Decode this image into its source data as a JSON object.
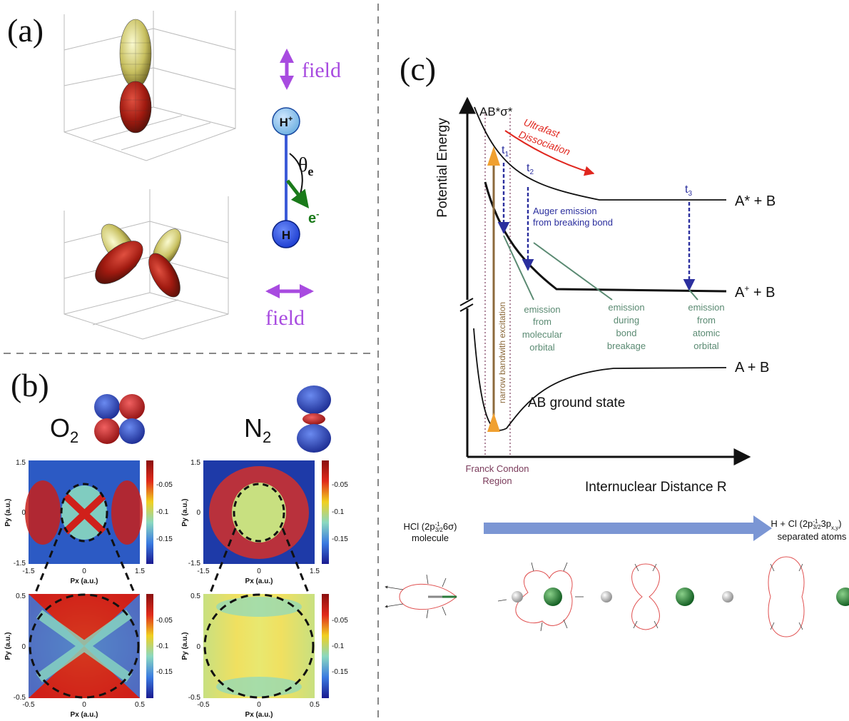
{
  "panels": {
    "a": {
      "label": "(a)",
      "field_top": "field",
      "field_bottom": "field",
      "h_plus": "H",
      "h_plus_sup": "+",
      "h_atom": "H",
      "theta": "θ",
      "theta_sub": "e",
      "electron": "e",
      "electron_sup": "-",
      "colors": {
        "field": "#a84be0",
        "electron": "#1a7a1a",
        "bond": "#3c5bd8"
      }
    },
    "b": {
      "label": "(b)",
      "o2_label": "O",
      "o2_sub": "2",
      "n2_label": "N",
      "n2_sub": "2",
      "top_maps": {
        "y_ticks": [
          "1.5",
          "0",
          "-1.5"
        ],
        "x_ticks": [
          "-1.5",
          "0",
          "1.5"
        ],
        "colorbar_ticks": [
          "-0.05",
          "-0.1",
          "-0.15"
        ]
      },
      "bottom_maps": {
        "y_ticks": [
          "0.5",
          "0",
          "-0.5"
        ],
        "x_ticks": [
          "-0.5",
          "0",
          "0.5"
        ],
        "colorbar_ticks": [
          "-0.05",
          "-0.1",
          "-0.15"
        ]
      },
      "xlabel": "Px (a.u.)",
      "ylabel": "Py (a.u.)"
    },
    "c": {
      "label": "(c)",
      "ylabel": "Potential Energy",
      "xlabel": "Internuclear Distance R",
      "ab_excited": "AB*σ*",
      "ultrafast": "Ultrafast",
      "dissociation": "Dissociation",
      "t1": "t",
      "t1_sub": "1",
      "t2": "t",
      "t2_sub": "2",
      "t3": "t",
      "t3_sub": "3",
      "a_star_b": "A* + B",
      "a_plus": "A",
      "a_plus_sup": "+",
      "a_plus_rest": " + B",
      "a_b": "A + B",
      "auger_line1": "Auger emission",
      "auger_line2": "from breaking bond",
      "narrow_bw": "narrow bandwith excitation",
      "emission_mol": [
        "emission",
        "from",
        "molecular",
        "orbital"
      ],
      "emission_bond": [
        "emission",
        "during",
        "bond",
        "breakage"
      ],
      "emission_atom": [
        "emission",
        "from",
        "atomic",
        "orbital"
      ],
      "ground_state": "AB ground state",
      "franck_condon_1": "Franck Condon",
      "franck_condon_2": "Region",
      "hcl_a": "HCl (2p",
      "hcl_sup": "-1",
      "hcl_sub": "3/2",
      "hcl_b": "6σ)",
      "hcl_line2": "molecule",
      "hcl_right_a": "H + Cl (2p",
      "hcl_right_sup": "-1",
      "hcl_right_sub": "3/2",
      "hcl_right_b": "3p",
      "hcl_right_sub2": "x,y",
      "hcl_right_c": ")",
      "hcl_right_line2": "separated atoms",
      "colors": {
        "red": "#e0261e",
        "blue": "#2b2f9e",
        "green": "#5a8a72",
        "brown": "#8c6a3c",
        "orange": "#f0a030",
        "arrow": "#7b96d4"
      }
    }
  }
}
